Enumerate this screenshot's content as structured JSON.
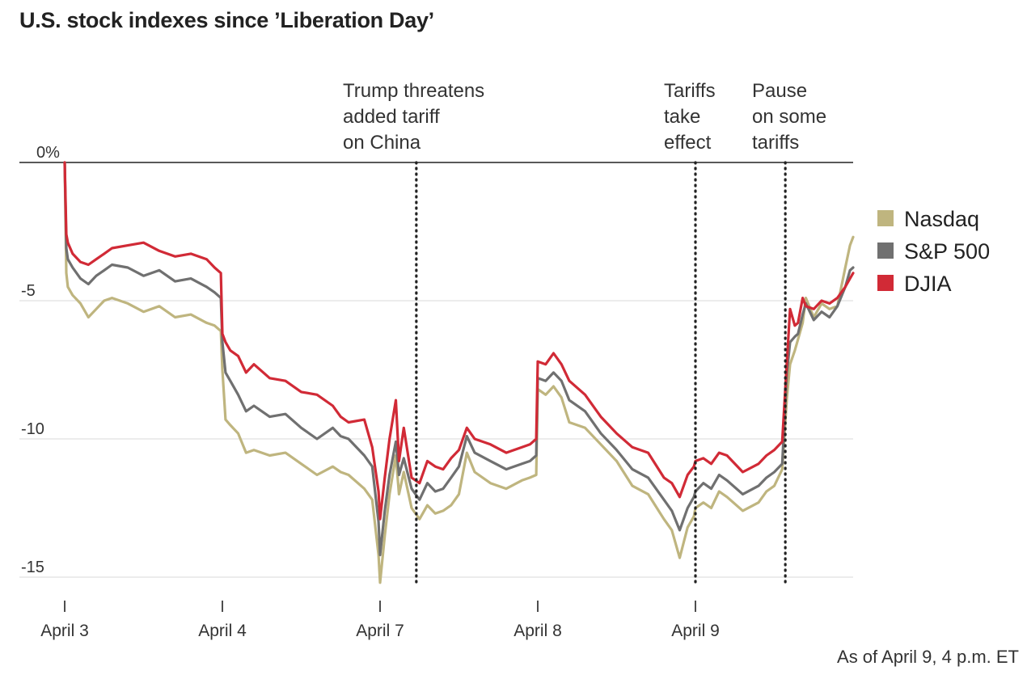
{
  "chart_data": {
    "type": "line",
    "title": "U.S. stock indexes since ’Liberation Day’",
    "footnote": "As of April 9, 4 p.m. ET",
    "xlabel": "",
    "ylabel": "",
    "x_tick_labels": [
      "April 3",
      "April 4",
      "April 7",
      "April 8",
      "April 9"
    ],
    "y_tick_labels": [
      "0%",
      "-5",
      "-10",
      "-15"
    ],
    "y_ticks": [
      0,
      -5,
      -10,
      -15
    ],
    "ylim": [
      -16,
      0
    ],
    "xlim": [
      0,
      5
    ],
    "grid": "horizontal",
    "legend_position": "right",
    "annotations": [
      {
        "lines": [
          "Trump threatens",
          "added tariff",
          "on China"
        ],
        "x": 2.23
      },
      {
        "lines": [
          "Tariffs",
          "take",
          "effect"
        ],
        "x": 4.0
      },
      {
        "lines": [
          "Pause",
          "on some",
          "tariffs"
        ],
        "x": 4.57
      }
    ],
    "series": [
      {
        "name": "Nasdaq",
        "color": "#bfb57f",
        "x": [
          0,
          0.01,
          0.02,
          0.05,
          0.1,
          0.15,
          0.2,
          0.25,
          0.3,
          0.4,
          0.5,
          0.6,
          0.7,
          0.8,
          0.9,
          0.95,
          0.99,
          1.0,
          1.02,
          1.05,
          1.1,
          1.15,
          1.2,
          1.3,
          1.4,
          1.5,
          1.6,
          1.7,
          1.75,
          1.8,
          1.9,
          1.95,
          1.99,
          2.0,
          2.03,
          2.06,
          2.1,
          2.12,
          2.15,
          2.2,
          2.25,
          2.3,
          2.35,
          2.4,
          2.45,
          2.5,
          2.55,
          2.6,
          2.7,
          2.8,
          2.9,
          2.95,
          2.99,
          3.0,
          3.05,
          3.1,
          3.15,
          3.2,
          3.3,
          3.4,
          3.5,
          3.6,
          3.7,
          3.8,
          3.85,
          3.9,
          3.95,
          3.99,
          4.0,
          4.05,
          4.1,
          4.15,
          4.2,
          4.3,
          4.4,
          4.45,
          4.5,
          4.55,
          4.58,
          4.6,
          4.63,
          4.65,
          4.68,
          4.7,
          4.75,
          4.8,
          4.85,
          4.9,
          4.95,
          4.98,
          5.0
        ],
        "values": [
          0,
          -4.0,
          -4.5,
          -4.8,
          -5.1,
          -5.6,
          -5.3,
          -5.0,
          -4.9,
          -5.1,
          -5.4,
          -5.2,
          -5.6,
          -5.5,
          -5.8,
          -5.9,
          -6.1,
          -7.5,
          -9.3,
          -9.5,
          -9.8,
          -10.5,
          -10.4,
          -10.6,
          -10.5,
          -10.9,
          -11.3,
          -11.0,
          -11.2,
          -11.3,
          -11.8,
          -12.2,
          -14.2,
          -15.2,
          -13.5,
          -12.0,
          -10.6,
          -12.0,
          -11.2,
          -12.5,
          -12.9,
          -12.4,
          -12.7,
          -12.6,
          -12.4,
          -12.0,
          -10.5,
          -11.2,
          -11.6,
          -11.8,
          -11.5,
          -11.4,
          -11.3,
          -8.2,
          -8.4,
          -8.1,
          -8.5,
          -9.4,
          -9.6,
          -10.2,
          -10.8,
          -11.7,
          -12.0,
          -12.9,
          -13.3,
          -14.3,
          -13.2,
          -12.8,
          -12.5,
          -12.3,
          -12.5,
          -11.9,
          -12.1,
          -12.6,
          -12.3,
          -11.9,
          -11.7,
          -11.1,
          -8.5,
          -7.3,
          -6.8,
          -6.4,
          -5.8,
          -4.9,
          -5.6,
          -5.1,
          -5.3,
          -5.2,
          -3.8,
          -3.0,
          -2.7
        ]
      },
      {
        "name": "S&P 500",
        "color": "#707070",
        "x": [
          0,
          0.01,
          0.02,
          0.05,
          0.1,
          0.15,
          0.2,
          0.25,
          0.3,
          0.4,
          0.5,
          0.6,
          0.7,
          0.8,
          0.9,
          0.95,
          0.99,
          1.0,
          1.02,
          1.05,
          1.1,
          1.15,
          1.2,
          1.3,
          1.4,
          1.5,
          1.6,
          1.7,
          1.75,
          1.8,
          1.9,
          1.95,
          1.99,
          2.0,
          2.03,
          2.06,
          2.1,
          2.12,
          2.15,
          2.2,
          2.25,
          2.3,
          2.35,
          2.4,
          2.45,
          2.5,
          2.55,
          2.6,
          2.7,
          2.8,
          2.9,
          2.95,
          2.99,
          3.0,
          3.05,
          3.1,
          3.15,
          3.2,
          3.3,
          3.4,
          3.5,
          3.6,
          3.7,
          3.8,
          3.85,
          3.9,
          3.95,
          3.99,
          4.0,
          4.05,
          4.1,
          4.15,
          4.2,
          4.3,
          4.4,
          4.45,
          4.5,
          4.55,
          4.58,
          4.6,
          4.63,
          4.65,
          4.68,
          4.7,
          4.75,
          4.8,
          4.85,
          4.9,
          4.95,
          4.98,
          5.0
        ],
        "values": [
          0,
          -3.1,
          -3.5,
          -3.8,
          -4.2,
          -4.4,
          -4.1,
          -3.9,
          -3.7,
          -3.8,
          -4.1,
          -3.9,
          -4.3,
          -4.2,
          -4.5,
          -4.7,
          -4.9,
          -6.5,
          -7.6,
          -7.9,
          -8.4,
          -9.0,
          -8.8,
          -9.2,
          -9.1,
          -9.6,
          -10.0,
          -9.6,
          -9.9,
          -10.0,
          -10.6,
          -11.0,
          -13.0,
          -14.2,
          -12.6,
          -11.3,
          -10.1,
          -11.3,
          -10.7,
          -11.8,
          -12.2,
          -11.6,
          -11.9,
          -11.8,
          -11.4,
          -11.0,
          -9.9,
          -10.5,
          -10.8,
          -11.1,
          -10.9,
          -10.8,
          -10.6,
          -7.8,
          -7.9,
          -7.6,
          -7.9,
          -8.6,
          -9.0,
          -9.8,
          -10.4,
          -11.1,
          -11.4,
          -12.2,
          -12.6,
          -13.3,
          -12.5,
          -12.1,
          -11.9,
          -11.6,
          -11.8,
          -11.3,
          -11.5,
          -12.0,
          -11.7,
          -11.4,
          -11.2,
          -10.9,
          -7.6,
          -6.5,
          -6.3,
          -6.2,
          -5.5,
          -5.1,
          -5.7,
          -5.4,
          -5.6,
          -5.2,
          -4.5,
          -3.9,
          -3.8
        ]
      },
      {
        "name": "DJIA",
        "color": "#d12a36",
        "x": [
          0,
          0.01,
          0.02,
          0.05,
          0.1,
          0.15,
          0.2,
          0.25,
          0.3,
          0.4,
          0.5,
          0.6,
          0.7,
          0.8,
          0.9,
          0.95,
          0.99,
          1.0,
          1.02,
          1.05,
          1.1,
          1.15,
          1.2,
          1.3,
          1.4,
          1.5,
          1.6,
          1.7,
          1.75,
          1.8,
          1.9,
          1.95,
          1.99,
          2.0,
          2.03,
          2.06,
          2.1,
          2.12,
          2.15,
          2.2,
          2.25,
          2.3,
          2.35,
          2.4,
          2.45,
          2.5,
          2.55,
          2.6,
          2.7,
          2.8,
          2.9,
          2.95,
          2.99,
          3.0,
          3.05,
          3.1,
          3.15,
          3.2,
          3.3,
          3.4,
          3.5,
          3.6,
          3.7,
          3.8,
          3.85,
          3.9,
          3.95,
          3.99,
          4.0,
          4.05,
          4.1,
          4.15,
          4.2,
          4.3,
          4.4,
          4.45,
          4.5,
          4.55,
          4.58,
          4.6,
          4.63,
          4.65,
          4.68,
          4.7,
          4.75,
          4.8,
          4.85,
          4.9,
          4.95,
          4.98,
          5.0
        ],
        "values": [
          0,
          -2.6,
          -2.9,
          -3.3,
          -3.6,
          -3.7,
          -3.5,
          -3.3,
          -3.1,
          -3.0,
          -2.9,
          -3.2,
          -3.4,
          -3.3,
          -3.5,
          -3.8,
          -4.0,
          -6.2,
          -6.5,
          -6.8,
          -7.0,
          -7.6,
          -7.3,
          -7.8,
          -7.9,
          -8.3,
          -8.4,
          -8.8,
          -9.2,
          -9.4,
          -9.3,
          -10.3,
          -11.9,
          -12.9,
          -11.4,
          -10.0,
          -8.6,
          -10.8,
          -9.6,
          -11.4,
          -11.6,
          -10.8,
          -11.0,
          -11.1,
          -10.7,
          -10.4,
          -9.6,
          -10.0,
          -10.2,
          -10.5,
          -10.3,
          -10.2,
          -10.0,
          -7.2,
          -7.3,
          -6.9,
          -7.3,
          -7.9,
          -8.4,
          -9.2,
          -9.8,
          -10.3,
          -10.5,
          -11.4,
          -11.6,
          -12.1,
          -11.3,
          -11.0,
          -10.8,
          -10.7,
          -10.9,
          -10.5,
          -10.6,
          -11.2,
          -10.9,
          -10.6,
          -10.4,
          -10.1,
          -7.2,
          -5.3,
          -5.9,
          -5.8,
          -4.9,
          -5.2,
          -5.3,
          -5.0,
          -5.1,
          -4.9,
          -4.5,
          -4.2,
          -4.0
        ]
      }
    ]
  }
}
